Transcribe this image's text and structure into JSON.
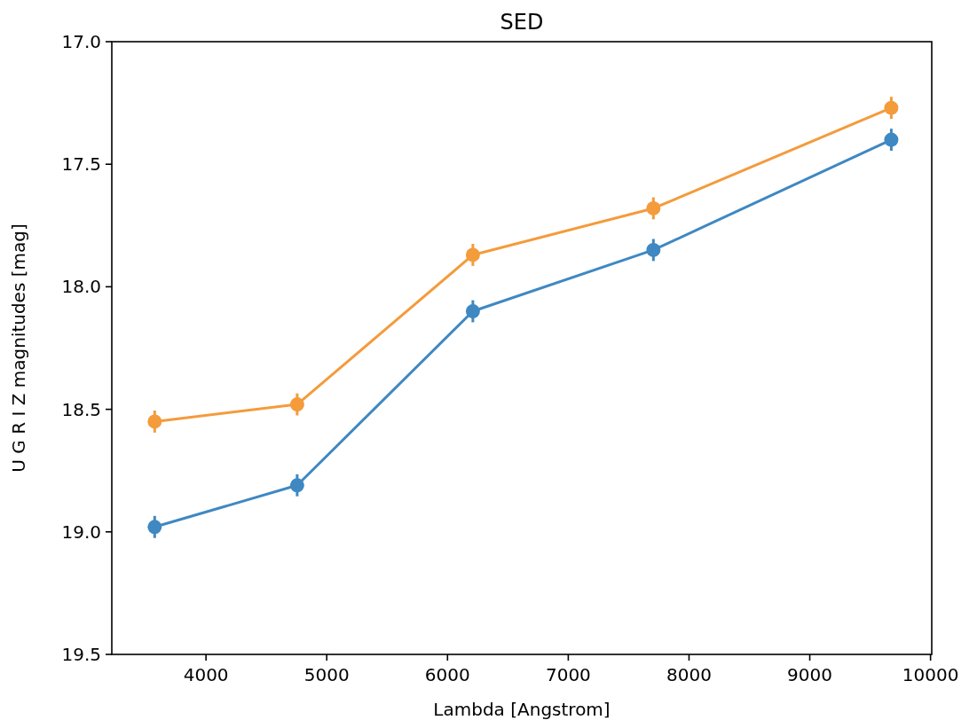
{
  "chart_data": {
    "type": "line",
    "title": "SED",
    "xlabel": "Lambda [Angstrom]",
    "ylabel": "U G R I Z magnitudes [mag]",
    "x": [
      3575,
      4755,
      6210,
      7705,
      9675
    ],
    "series": [
      {
        "color": "#3f88c2",
        "values": [
          18.98,
          18.81,
          18.1,
          17.85,
          17.4
        ],
        "errors": [
          0.045,
          0.045,
          0.045,
          0.045,
          0.045
        ]
      },
      {
        "color": "#f49b3b",
        "values": [
          18.55,
          18.48,
          17.87,
          17.68,
          17.27
        ],
        "errors": [
          0.045,
          0.045,
          0.045,
          0.045,
          0.045
        ]
      }
    ],
    "xlim": [
      3220,
      10010
    ],
    "xticks": [
      4000,
      5000,
      6000,
      7000,
      8000,
      9000,
      10000
    ],
    "ylim": [
      19.5,
      17.0
    ],
    "yticks": [
      {
        "value": 17,
        "label": "17.0"
      },
      {
        "value": 17.5,
        "label": "17.5"
      },
      {
        "value": 18,
        "label": "18.0"
      },
      {
        "value": 18.5,
        "label": "18.5"
      },
      {
        "value": 19,
        "label": "19.0"
      },
      {
        "value": 19.5,
        "label": "19.5"
      }
    ],
    "marker": "circle",
    "line_style": "solid",
    "grid": false
  }
}
